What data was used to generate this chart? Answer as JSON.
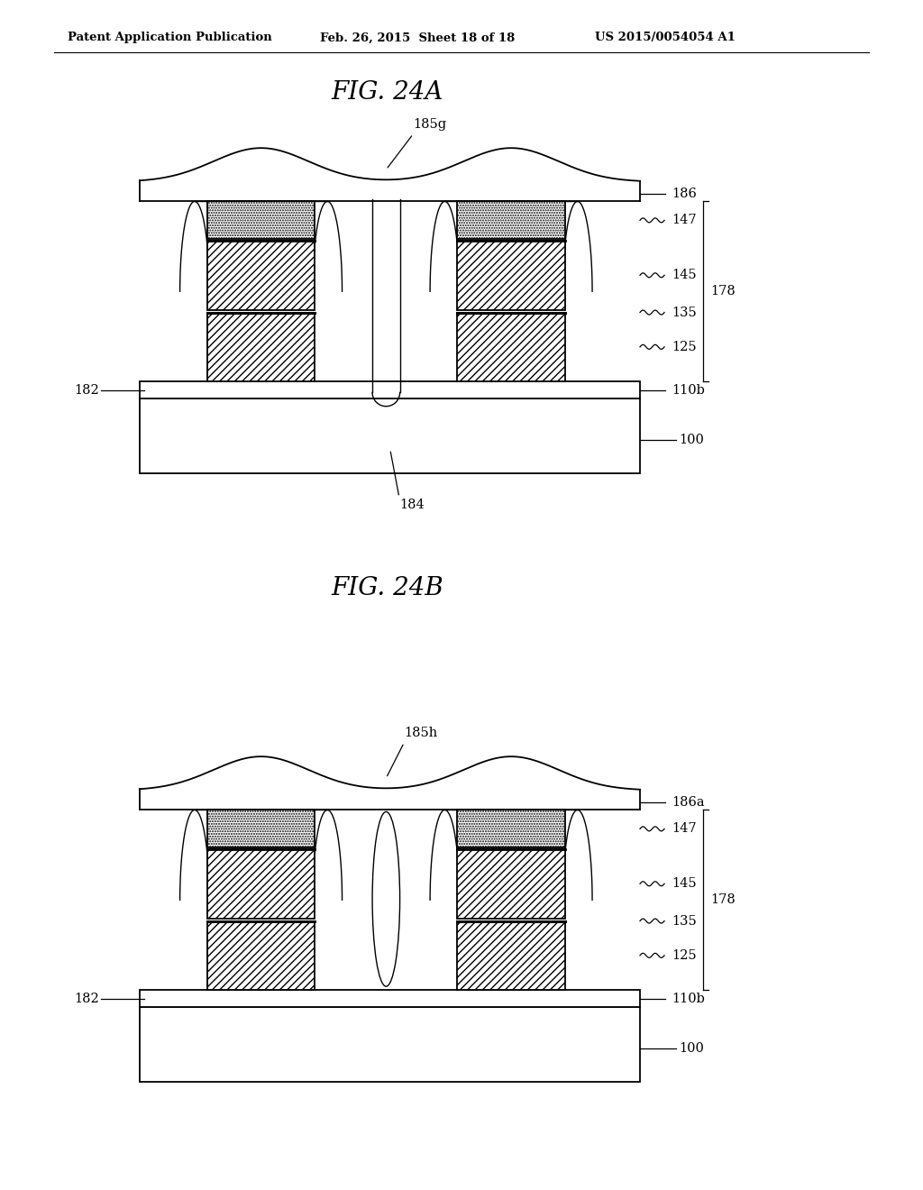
{
  "bg_color": "#ffffff",
  "line_color": "#000000",
  "header_text": "Patent Application Publication",
  "header_date": "Feb. 26, 2015  Sheet 18 of 18",
  "header_patent": "US 2015/0054054 A1",
  "fig_a_title": "FIG. 24A",
  "fig_b_title": "FIG. 24B",
  "fig_a": {
    "label_185": "185g",
    "label_186": "186",
    "label_147": "147",
    "label_145": "145",
    "label_135": "135",
    "label_125": "125",
    "label_178": "178",
    "label_110b": "110b",
    "label_182": "182",
    "label_100": "100",
    "label_184": "184"
  },
  "fig_b": {
    "label_185": "185h",
    "label_186": "186a",
    "label_147": "147",
    "label_145": "145",
    "label_135": "135",
    "label_125": "125",
    "label_178": "178",
    "label_110b": "110b",
    "label_182": "182",
    "label_100": "100"
  }
}
